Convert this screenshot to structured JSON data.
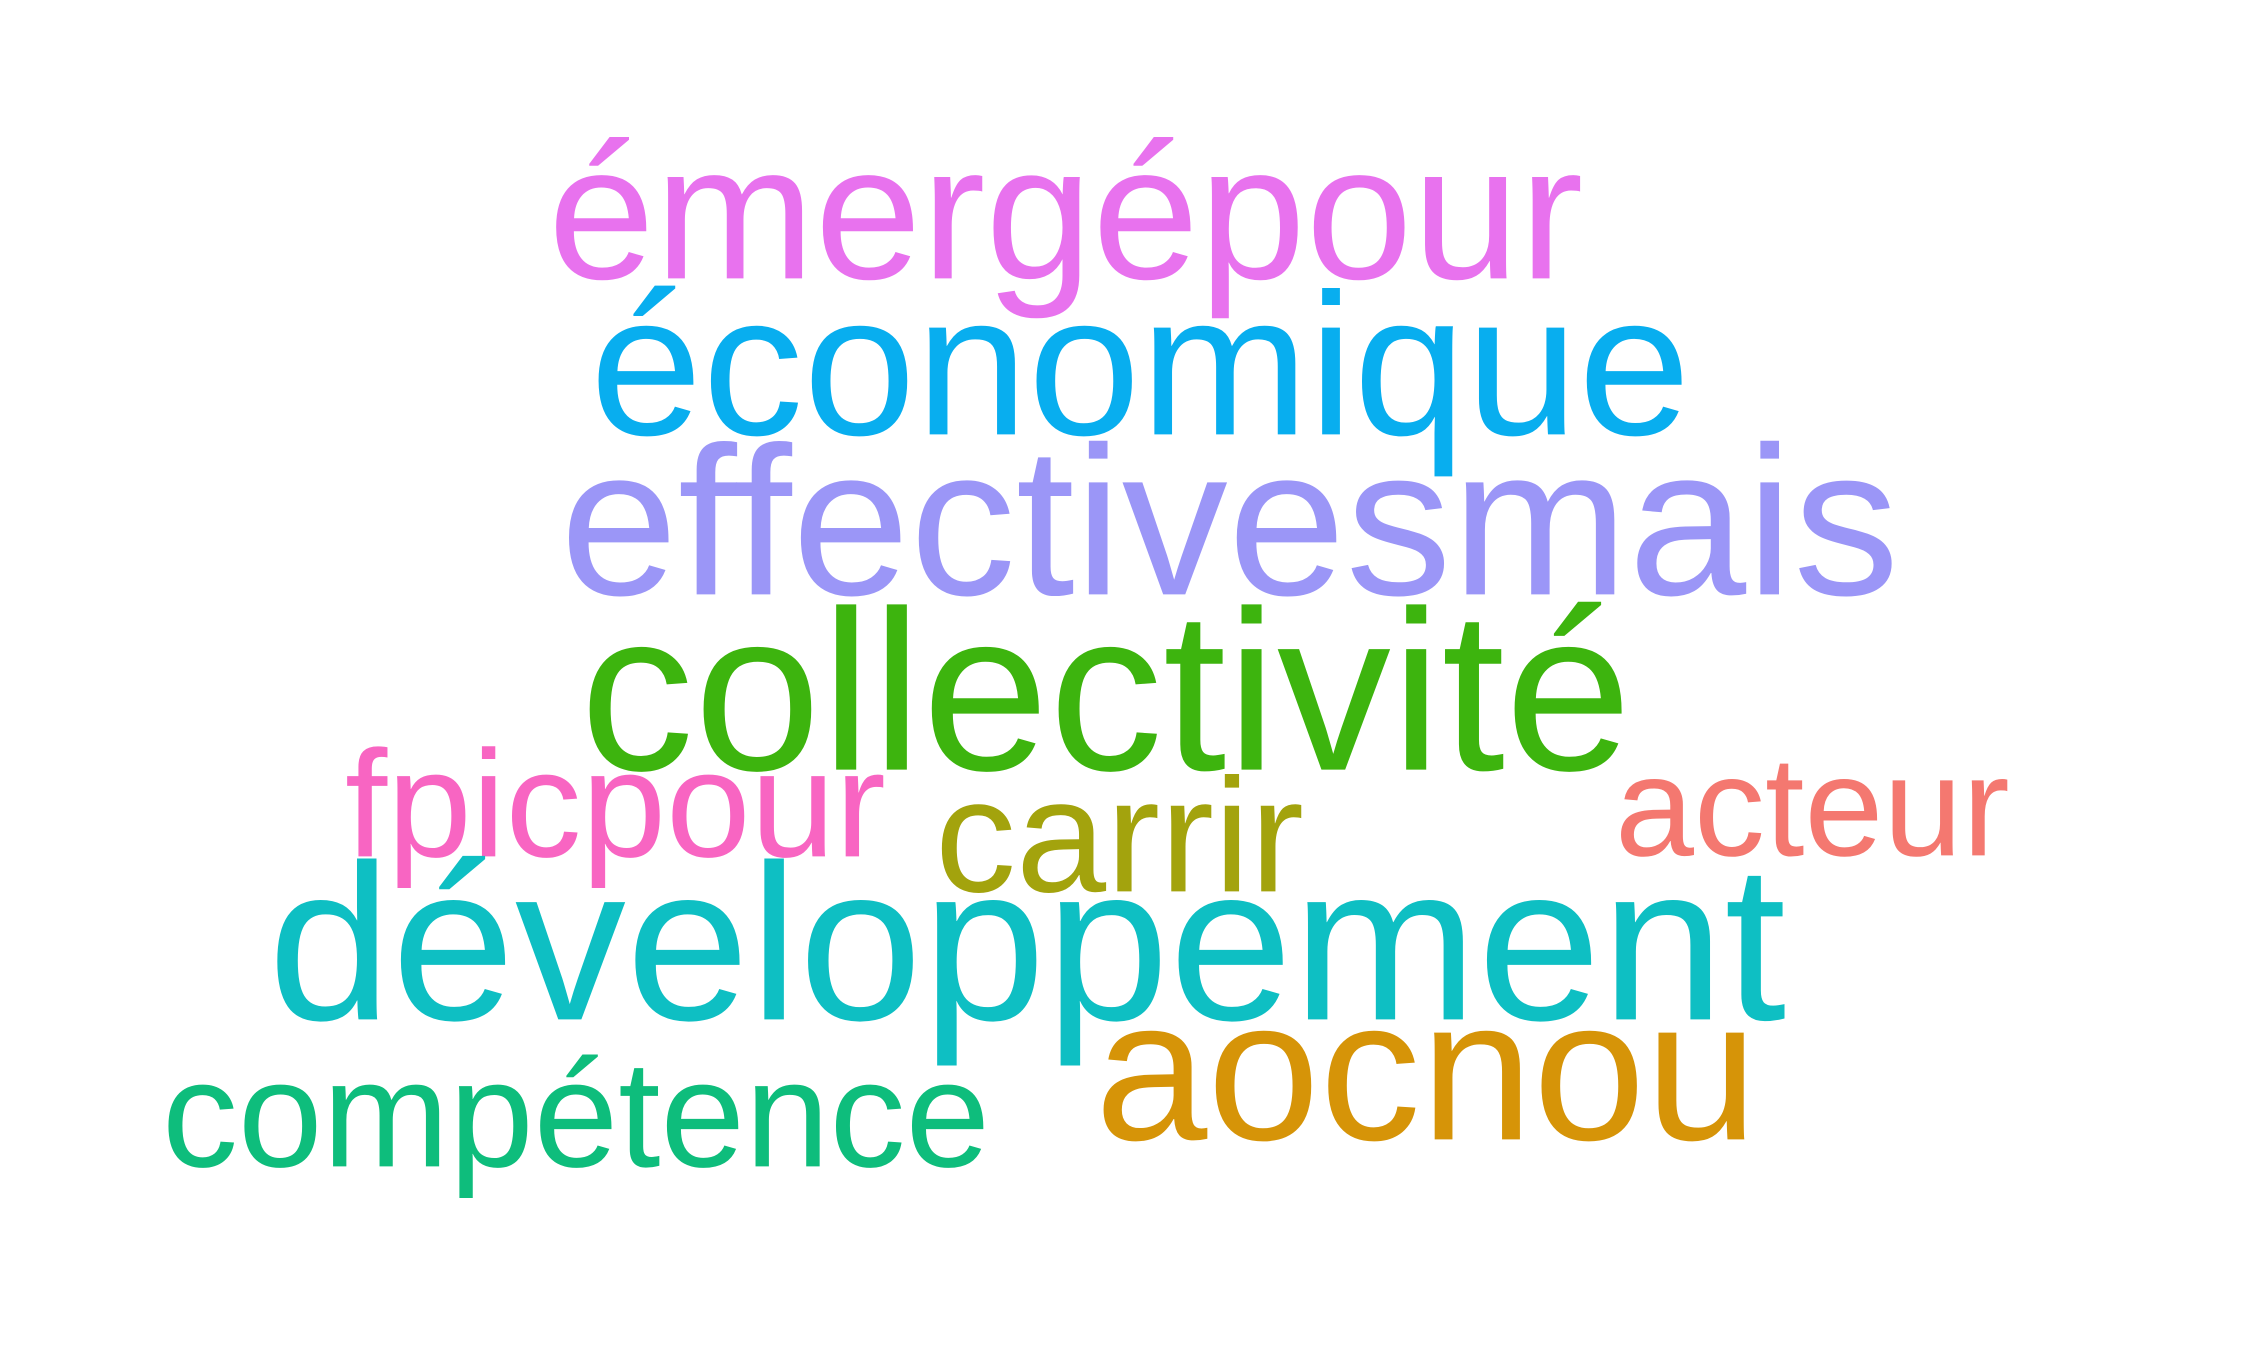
{
  "words": [
    {
      "text": "émergépour",
      "color": "#E872EE"
    },
    {
      "text": "économique",
      "color": "#08AEEF"
    },
    {
      "text": "effectivesmais",
      "color": "#9B96F7"
    },
    {
      "text": "collectivité",
      "color": "#3DB40E"
    },
    {
      "text": "fpicpour",
      "color": "#F865C2"
    },
    {
      "text": "carrir",
      "color": "#A3A30D"
    },
    {
      "text": "acteur",
      "color": "#F47870"
    },
    {
      "text": "développement",
      "color": "#0EBFC3"
    },
    {
      "text": "compétence",
      "color": "#0EBD7C"
    },
    {
      "text": "aocnou",
      "color": "#D69408"
    }
  ]
}
